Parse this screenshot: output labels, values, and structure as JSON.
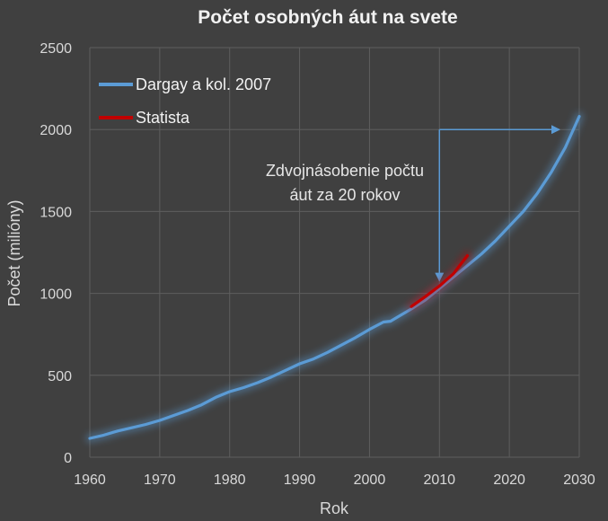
{
  "chart_data": {
    "type": "line",
    "title": "Počet osobných áut na svete",
    "xlabel": "Rok",
    "ylabel": "Počet (milióny)",
    "xlim": [
      1960,
      2030
    ],
    "ylim": [
      0,
      2500
    ],
    "x_ticks": [
      1960,
      1970,
      1980,
      1990,
      2000,
      2010,
      2020,
      2030
    ],
    "y_ticks": [
      0,
      500,
      1000,
      1500,
      2000,
      2500
    ],
    "grid": true,
    "legend_position": "top-left",
    "series": [
      {
        "name": "Dargay a kol. 2007",
        "color": "#5b9bd5",
        "x": [
          1960,
          1962,
          1964,
          1966,
          1968,
          1970,
          1972,
          1974,
          1976,
          1978,
          1980,
          1982,
          1984,
          1986,
          1988,
          1990,
          1992,
          1994,
          1996,
          1998,
          2000,
          2002,
          2003,
          2004,
          2006,
          2008,
          2010,
          2012,
          2014,
          2016,
          2018,
          2020,
          2022,
          2024,
          2026,
          2028,
          2030
        ],
        "values": [
          115,
          135,
          160,
          180,
          200,
          225,
          255,
          285,
          320,
          365,
          400,
          425,
          455,
          490,
          530,
          570,
          600,
          640,
          685,
          730,
          780,
          825,
          830,
          855,
          905,
          960,
          1030,
          1100,
          1170,
          1240,
          1320,
          1410,
          1500,
          1610,
          1740,
          1890,
          2080
        ]
      },
      {
        "name": "Statista",
        "color": "#c00000",
        "x": [
          2006,
          2008,
          2010,
          2012,
          2014
        ],
        "values": [
          920,
          980,
          1045,
          1120,
          1230
        ]
      }
    ],
    "annotation": {
      "text_lines": [
        "Zdvojnásobenie  počtu",
        "áut za  20  rokov"
      ],
      "bracket_from": {
        "x": 2010,
        "y": 1000
      },
      "bracket_corner": {
        "x": 2010,
        "y": 2000
      },
      "bracket_to": {
        "x": 2030,
        "y": 2000
      },
      "color": "#5b9bd5"
    }
  }
}
